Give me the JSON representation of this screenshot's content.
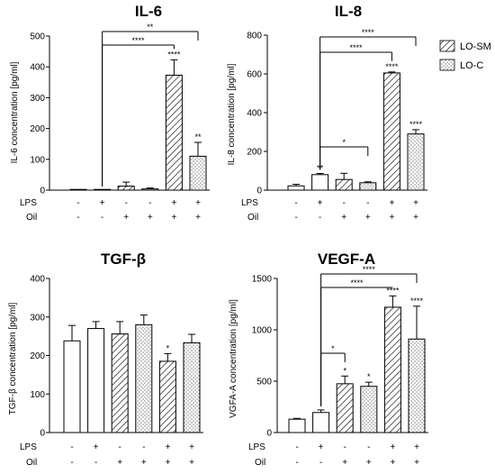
{
  "legend": [
    {
      "label": "LO-SM",
      "pattern": "hatch"
    },
    {
      "label": "LO-C",
      "pattern": "dots"
    }
  ],
  "condition_labels": {
    "lps": "LPS",
    "oil": "Oil"
  },
  "chart_data": [
    {
      "type": "bar",
      "title": "IL-6",
      "ylabel": "IL-6 concentration [pg/ml]",
      "ylim": [
        0,
        500
      ],
      "yticks": [
        "0",
        "100",
        "200",
        "300",
        "400",
        "500"
      ],
      "ytick_values": [
        0,
        100,
        200,
        300,
        400,
        500
      ],
      "grid": false,
      "lps": [
        "-",
        "+",
        "-",
        "-",
        "+",
        "+"
      ],
      "oil": [
        "-",
        "-",
        "+",
        "+",
        "+",
        "+"
      ],
      "bars": [
        {
          "value": 0,
          "error": 0,
          "pattern": "open",
          "sig": ""
        },
        {
          "value": 0,
          "error": 0,
          "pattern": "open",
          "sig": ""
        },
        {
          "value": 13,
          "error": 13,
          "pattern": "hatch",
          "sig": ""
        },
        {
          "value": 4,
          "error": 3,
          "pattern": "dots",
          "sig": ""
        },
        {
          "value": 373,
          "error": 50,
          "pattern": "hatch",
          "sig": "****"
        },
        {
          "value": 110,
          "error": 45,
          "pattern": "dots",
          "sig": "**"
        }
      ],
      "brackets": [
        {
          "from": 1,
          "to": 5,
          "label": "**"
        },
        {
          "from": 1,
          "to": 4,
          "label": "****"
        }
      ]
    },
    {
      "type": "bar",
      "title": "IL-8",
      "ylabel": "IL-8 concentration [pg/ml]",
      "ylim": [
        0,
        800
      ],
      "yticks": [
        "0",
        "200",
        "400",
        "600",
        "800"
      ],
      "ytick_values": [
        0,
        200,
        400,
        600,
        800
      ],
      "grid": false,
      "lps": [
        "-",
        "+",
        "-",
        "-",
        "+",
        "+"
      ],
      "oil": [
        "-",
        "-",
        "+",
        "+",
        "+",
        "+"
      ],
      "bars": [
        {
          "value": 22,
          "error": 8,
          "pattern": "open",
          "sig": ""
        },
        {
          "value": 80,
          "error": 6,
          "pattern": "open",
          "sig": "**"
        },
        {
          "value": 55,
          "error": 32,
          "pattern": "hatch",
          "sig": ""
        },
        {
          "value": 38,
          "error": 5,
          "pattern": "dots",
          "sig": ""
        },
        {
          "value": 605,
          "error": 5,
          "pattern": "hatch",
          "sig": "****"
        },
        {
          "value": 290,
          "error": 22,
          "pattern": "dots",
          "sig": "****"
        }
      ],
      "brackets": [
        {
          "from": 1,
          "to": 5,
          "label": "****"
        },
        {
          "from": 1,
          "to": 4,
          "label": "****"
        },
        {
          "from": 1,
          "to": 3,
          "label": "*"
        }
      ]
    },
    {
      "type": "bar",
      "title": "TGF-β",
      "ylabel": "TGF-β concentration [pg/ml]",
      "ylim": [
        0,
        400
      ],
      "yticks": [
        "0",
        "100",
        "200",
        "300",
        "400"
      ],
      "ytick_values": [
        0,
        100,
        200,
        300,
        400
      ],
      "grid": false,
      "lps": [
        "-",
        "+",
        "-",
        "-",
        "+",
        "+"
      ],
      "oil": [
        "-",
        "-",
        "+",
        "+",
        "+",
        "+"
      ],
      "bars": [
        {
          "value": 238,
          "error": 40,
          "pattern": "open",
          "sig": ""
        },
        {
          "value": 270,
          "error": 18,
          "pattern": "open",
          "sig": ""
        },
        {
          "value": 256,
          "error": 32,
          "pattern": "hatch",
          "sig": ""
        },
        {
          "value": 280,
          "error": 25,
          "pattern": "dots",
          "sig": ""
        },
        {
          "value": 185,
          "error": 20,
          "pattern": "hatch",
          "sig": "*"
        },
        {
          "value": 233,
          "error": 22,
          "pattern": "dots",
          "sig": ""
        }
      ],
      "brackets": []
    },
    {
      "type": "bar",
      "title": "VEGF-A",
      "ylabel": "VGFA-A concentration [pg/ml]",
      "ylim": [
        0,
        1500
      ],
      "yticks": [
        "0",
        "500",
        "1000",
        "1500"
      ],
      "ytick_values": [
        0,
        500,
        1000,
        1500
      ],
      "grid": false,
      "lps": [
        "-",
        "+",
        "-",
        "-",
        "+",
        "+"
      ],
      "oil": [
        "-",
        "-",
        "+",
        "+",
        "+",
        "+"
      ],
      "bars": [
        {
          "value": 130,
          "error": 8,
          "pattern": "open",
          "sig": ""
        },
        {
          "value": 195,
          "error": 25,
          "pattern": "open",
          "sig": ""
        },
        {
          "value": 475,
          "error": 75,
          "pattern": "hatch",
          "sig": "*"
        },
        {
          "value": 450,
          "error": 40,
          "pattern": "dots",
          "sig": "*"
        },
        {
          "value": 1220,
          "error": 110,
          "pattern": "hatch",
          "sig": "****"
        },
        {
          "value": 910,
          "error": 320,
          "pattern": "dots",
          "sig": "****"
        }
      ],
      "brackets": [
        {
          "from": 1,
          "to": 5,
          "label": "****"
        },
        {
          "from": 1,
          "to": 4,
          "label": "****"
        },
        {
          "from": 1,
          "to": 2,
          "label": "*"
        }
      ]
    }
  ]
}
